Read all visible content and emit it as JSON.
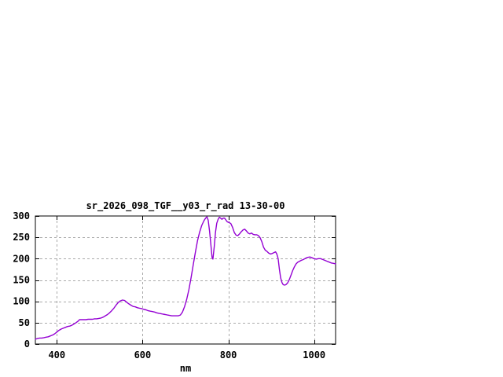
{
  "page": {
    "background_color": "#ffffff"
  },
  "chart_data": {
    "type": "line",
    "title": "sr_2026_098_TGF__y03_r_rad 13-30-00",
    "xlabel": "nm",
    "ylabel": "",
    "xlim": [
      350,
      1050
    ],
    "ylim": [
      0,
      300
    ],
    "x_ticks": [
      400,
      600,
      800,
      1000
    ],
    "y_ticks": [
      0,
      50,
      100,
      150,
      200,
      250,
      300
    ],
    "grid": true,
    "legend_position": "none",
    "line_color": "#9400d3",
    "grid_color": "#aaaaaa",
    "border_color": "#000000",
    "series": [
      {
        "points": [
          [
            350,
            11
          ],
          [
            355,
            13
          ],
          [
            360,
            14
          ],
          [
            365,
            14
          ],
          [
            370,
            15
          ],
          [
            375,
            16
          ],
          [
            380,
            17
          ],
          [
            385,
            19
          ],
          [
            390,
            21
          ],
          [
            395,
            24
          ],
          [
            400,
            28
          ],
          [
            405,
            32
          ],
          [
            410,
            35
          ],
          [
            415,
            37
          ],
          [
            420,
            39
          ],
          [
            425,
            41
          ],
          [
            430,
            42
          ],
          [
            435,
            44
          ],
          [
            440,
            47
          ],
          [
            445,
            50
          ],
          [
            450,
            54
          ],
          [
            453,
            57
          ],
          [
            458,
            57
          ],
          [
            463,
            57
          ],
          [
            468,
            57
          ],
          [
            473,
            58
          ],
          [
            478,
            58
          ],
          [
            483,
            58
          ],
          [
            488,
            59
          ],
          [
            493,
            59
          ],
          [
            498,
            60
          ],
          [
            503,
            61
          ],
          [
            508,
            63
          ],
          [
            513,
            66
          ],
          [
            518,
            69
          ],
          [
            523,
            73
          ],
          [
            528,
            78
          ],
          [
            533,
            84
          ],
          [
            538,
            91
          ],
          [
            543,
            97
          ],
          [
            548,
            101
          ],
          [
            553,
            103
          ],
          [
            558,
            102
          ],
          [
            563,
            98
          ],
          [
            568,
            94
          ],
          [
            573,
            91
          ],
          [
            578,
            88
          ],
          [
            583,
            87
          ],
          [
            588,
            85
          ],
          [
            593,
            84
          ],
          [
            598,
            83
          ],
          [
            603,
            81
          ],
          [
            608,
            80
          ],
          [
            613,
            78
          ],
          [
            618,
            77
          ],
          [
            623,
            76
          ],
          [
            628,
            75
          ],
          [
            633,
            73
          ],
          [
            638,
            72
          ],
          [
            643,
            71
          ],
          [
            648,
            70
          ],
          [
            653,
            69
          ],
          [
            658,
            68
          ],
          [
            663,
            67
          ],
          [
            668,
            66
          ],
          [
            673,
            66
          ],
          [
            678,
            66
          ],
          [
            683,
            66
          ],
          [
            688,
            68
          ],
          [
            693,
            75
          ],
          [
            698,
            88
          ],
          [
            703,
            105
          ],
          [
            708,
            128
          ],
          [
            713,
            155
          ],
          [
            718,
            185
          ],
          [
            723,
            215
          ],
          [
            728,
            242
          ],
          [
            733,
            262
          ],
          [
            738,
            278
          ],
          [
            743,
            289
          ],
          [
            747,
            295
          ],
          [
            750,
            298
          ],
          [
            753,
            290
          ],
          [
            756,
            265
          ],
          [
            759,
            235
          ],
          [
            762,
            203
          ],
          [
            764,
            199
          ],
          [
            767,
            228
          ],
          [
            770,
            262
          ],
          [
            773,
            283
          ],
          [
            776,
            292
          ],
          [
            779,
            297
          ],
          [
            782,
            295
          ],
          [
            785,
            292
          ],
          [
            788,
            295
          ],
          [
            791,
            295
          ],
          [
            794,
            291
          ],
          [
            797,
            287
          ],
          [
            800,
            285
          ],
          [
            803,
            284
          ],
          [
            806,
            282
          ],
          [
            810,
            273
          ],
          [
            814,
            261
          ],
          [
            818,
            255
          ],
          [
            822,
            254
          ],
          [
            826,
            258
          ],
          [
            830,
            263
          ],
          [
            834,
            267
          ],
          [
            838,
            269
          ],
          [
            842,
            265
          ],
          [
            846,
            260
          ],
          [
            850,
            258
          ],
          [
            854,
            260
          ],
          [
            858,
            257
          ],
          [
            862,
            256
          ],
          [
            866,
            256
          ],
          [
            870,
            254
          ],
          [
            874,
            249
          ],
          [
            878,
            240
          ],
          [
            882,
            227
          ],
          [
            886,
            220
          ],
          [
            890,
            217
          ],
          [
            894,
            213
          ],
          [
            898,
            211
          ],
          [
            902,
            212
          ],
          [
            906,
            214
          ],
          [
            910,
            216
          ],
          [
            913,
            211
          ],
          [
            916,
            200
          ],
          [
            919,
            175
          ],
          [
            922,
            155
          ],
          [
            925,
            144
          ],
          [
            928,
            139
          ],
          [
            931,
            138
          ],
          [
            934,
            139
          ],
          [
            938,
            143
          ],
          [
            942,
            151
          ],
          [
            946,
            161
          ],
          [
            950,
            172
          ],
          [
            954,
            181
          ],
          [
            958,
            188
          ],
          [
            962,
            192
          ],
          [
            966,
            194
          ],
          [
            970,
            196
          ],
          [
            975,
            198
          ],
          [
            980,
            201
          ],
          [
            985,
            203
          ],
          [
            990,
            204
          ],
          [
            995,
            202
          ],
          [
            1000,
            200
          ],
          [
            1005,
            199
          ],
          [
            1010,
            200
          ],
          [
            1015,
            200
          ],
          [
            1020,
            198
          ],
          [
            1025,
            196
          ],
          [
            1030,
            194
          ],
          [
            1035,
            192
          ],
          [
            1040,
            190
          ],
          [
            1045,
            189
          ],
          [
            1050,
            188
          ]
        ]
      }
    ]
  }
}
